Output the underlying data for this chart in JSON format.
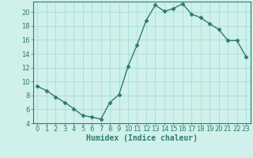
{
  "x": [
    0,
    1,
    2,
    3,
    4,
    5,
    6,
    7,
    8,
    9,
    10,
    11,
    12,
    13,
    14,
    15,
    16,
    17,
    18,
    19,
    20,
    21,
    22,
    23
  ],
  "y": [
    9.3,
    8.7,
    7.8,
    7.0,
    6.1,
    5.1,
    4.9,
    4.6,
    7.0,
    8.1,
    12.2,
    15.3,
    18.8,
    21.0,
    20.1,
    20.5,
    21.2,
    19.7,
    19.2,
    18.3,
    17.5,
    15.9,
    15.9,
    13.6
  ],
  "line_color": "#2d7d6b",
  "marker": "D",
  "markersize": 2.5,
  "linewidth": 1.0,
  "bg_color": "#cff0eb",
  "grid_color": "#a8ddd7",
  "xlabel": "Humidex (Indice chaleur)",
  "ylabel": "",
  "xlim": [
    -0.5,
    23.5
  ],
  "ylim": [
    4,
    21.5
  ],
  "yticks": [
    4,
    6,
    8,
    10,
    12,
    14,
    16,
    18,
    20
  ],
  "xticks": [
    0,
    1,
    2,
    3,
    4,
    5,
    6,
    7,
    8,
    9,
    10,
    11,
    12,
    13,
    14,
    15,
    16,
    17,
    18,
    19,
    20,
    21,
    22,
    23
  ],
  "xlabel_fontsize": 7,
  "tick_fontsize": 6,
  "axis_color": "#2d7d6b",
  "spine_color": "#2d7d6b"
}
